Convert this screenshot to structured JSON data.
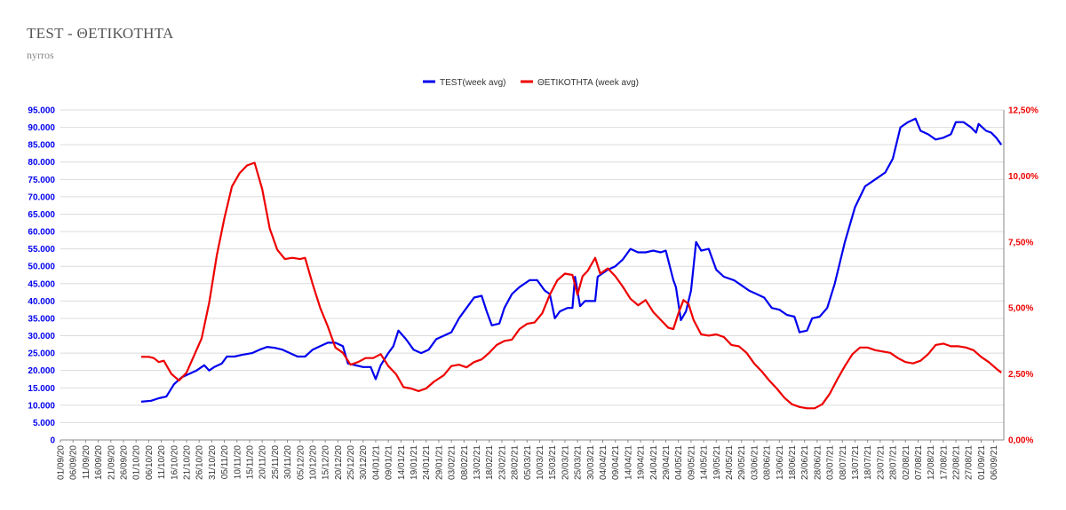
{
  "title": "TEST - ΘΕΤΙΚΟΤΗΤΑ",
  "subtitle": "nyrros",
  "colors": {
    "test": "#0000ee",
    "positivity": "#ee0000",
    "grid": "#dcdcdc"
  },
  "chart_data": {
    "type": "line",
    "legend_position": "top-center",
    "grid": true,
    "legend": [
      "TEST(week avg)",
      "ΘΕΤΙΚΟΤΗΤΑ (week avg)"
    ],
    "x_start": "2020-09-01",
    "x_end": "2021-09-10",
    "x_ticks": [
      "01/09/20",
      "06/09/20",
      "11/09/20",
      "16/09/20",
      "21/09/20",
      "26/09/20",
      "01/10/20",
      "06/10/20",
      "11/10/20",
      "16/10/20",
      "21/10/20",
      "26/10/20",
      "31/10/20",
      "05/11/20",
      "10/11/20",
      "15/11/20",
      "20/11/20",
      "25/11/20",
      "30/11/20",
      "05/12/20",
      "10/12/20",
      "15/12/20",
      "20/12/20",
      "25/12/20",
      "30/12/20",
      "04/01/21",
      "09/01/21",
      "14/01/21",
      "19/01/21",
      "24/01/21",
      "29/01/21",
      "03/02/21",
      "08/02/21",
      "13/02/21",
      "18/02/21",
      "23/02/21",
      "28/02/21",
      "05/03/21",
      "10/03/21",
      "15/03/21",
      "20/03/21",
      "25/03/21",
      "30/03/21",
      "04/04/21",
      "09/04/21",
      "14/04/21",
      "19/04/21",
      "24/04/21",
      "29/04/21",
      "04/05/21",
      "09/05/21",
      "14/05/21",
      "19/05/21",
      "24/05/21",
      "29/05/21",
      "03/06/21",
      "08/06/21",
      "13/06/21",
      "18/06/21",
      "23/06/21",
      "28/06/21",
      "03/07/21",
      "08/07/21",
      "13/07/21",
      "18/07/21",
      "23/07/21",
      "28/07/21",
      "02/08/21",
      "07/08/21",
      "12/08/21",
      "17/08/21",
      "22/08/21",
      "27/08/21",
      "01/09/21",
      "06/09/21"
    ],
    "y_left": {
      "min": 0,
      "max": 95000,
      "step": 5000,
      "tick_labels": [
        "0",
        "5.000",
        "10.000",
        "15.000",
        "20.000",
        "25.000",
        "30.000",
        "35.000",
        "40.000",
        "45.000",
        "50.000",
        "55.000",
        "60.000",
        "65.000",
        "70.000",
        "75.000",
        "80.000",
        "85.000",
        "90.000",
        "95.000"
      ]
    },
    "y_right": {
      "min": 0,
      "max": 12.5,
      "step": 2.5,
      "tick_labels": [
        "0,00%",
        "2,50%",
        "5,00%",
        "7,50%",
        "10,00%",
        "12,50%"
      ]
    },
    "series": [
      {
        "name": "TEST(week avg)",
        "axis": "left",
        "points": [
          [
            "2020-10-03",
            11000
          ],
          [
            "2020-10-07",
            11300
          ],
          [
            "2020-10-10",
            12000
          ],
          [
            "2020-10-13",
            12500
          ],
          [
            "2020-10-16",
            16000
          ],
          [
            "2020-10-19",
            18000
          ],
          [
            "2020-10-22",
            19000
          ],
          [
            "2020-10-25",
            20000
          ],
          [
            "2020-10-28",
            21500
          ],
          [
            "2020-10-30",
            20000
          ],
          [
            "2020-11-01",
            21000
          ],
          [
            "2020-11-04",
            22000
          ],
          [
            "2020-11-06",
            24000
          ],
          [
            "2020-11-09",
            24000
          ],
          [
            "2020-11-12",
            24500
          ],
          [
            "2020-11-16",
            25000
          ],
          [
            "2020-11-19",
            26000
          ],
          [
            "2020-11-22",
            26800
          ],
          [
            "2020-11-25",
            26500
          ],
          [
            "2020-11-28",
            26000
          ],
          [
            "2020-12-01",
            25000
          ],
          [
            "2020-12-04",
            24000
          ],
          [
            "2020-12-07",
            24000
          ],
          [
            "2020-12-10",
            26000
          ],
          [
            "2020-12-13",
            27000
          ],
          [
            "2020-12-16",
            28000
          ],
          [
            "2020-12-19",
            28000
          ],
          [
            "2020-12-22",
            27000
          ],
          [
            "2020-12-24",
            22000
          ],
          [
            "2020-12-27",
            21500
          ],
          [
            "2020-12-30",
            21000
          ],
          [
            "2021-01-02",
            21000
          ],
          [
            "2021-01-04",
            17500
          ],
          [
            "2021-01-06",
            21500
          ],
          [
            "2021-01-09",
            25000
          ],
          [
            "2021-01-11",
            27000
          ],
          [
            "2021-01-13",
            31500
          ],
          [
            "2021-01-16",
            29000
          ],
          [
            "2021-01-19",
            26000
          ],
          [
            "2021-01-22",
            25000
          ],
          [
            "2021-01-25",
            26000
          ],
          [
            "2021-01-28",
            29000
          ],
          [
            "2021-01-31",
            30000
          ],
          [
            "2021-02-03",
            31000
          ],
          [
            "2021-02-06",
            35000
          ],
          [
            "2021-02-09",
            38000
          ],
          [
            "2021-02-12",
            41000
          ],
          [
            "2021-02-15",
            41500
          ],
          [
            "2021-02-17",
            37000
          ],
          [
            "2021-02-19",
            33000
          ],
          [
            "2021-02-22",
            33500
          ],
          [
            "2021-02-24",
            38000
          ],
          [
            "2021-02-27",
            42000
          ],
          [
            "2021-03-02",
            44000
          ],
          [
            "2021-03-06",
            46000
          ],
          [
            "2021-03-09",
            46000
          ],
          [
            "2021-03-12",
            43000
          ],
          [
            "2021-03-14",
            42000
          ],
          [
            "2021-03-16",
            35000
          ],
          [
            "2021-03-18",
            37000
          ],
          [
            "2021-03-21",
            38000
          ],
          [
            "2021-03-23",
            38000
          ],
          [
            "2021-03-24",
            47000
          ],
          [
            "2021-03-26",
            38500
          ],
          [
            "2021-03-28",
            40000
          ],
          [
            "2021-04-01",
            40000
          ],
          [
            "2021-04-02",
            47000
          ],
          [
            "2021-04-06",
            49000
          ],
          [
            "2021-04-09",
            50000
          ],
          [
            "2021-04-12",
            52000
          ],
          [
            "2021-04-15",
            55000
          ],
          [
            "2021-04-18",
            54000
          ],
          [
            "2021-04-21",
            54000
          ],
          [
            "2021-04-24",
            54500
          ],
          [
            "2021-04-27",
            54000
          ],
          [
            "2021-04-29",
            54500
          ],
          [
            "2021-05-02",
            46000
          ],
          [
            "2021-05-03",
            44000
          ],
          [
            "2021-05-05",
            34500
          ],
          [
            "2021-05-07",
            37000
          ],
          [
            "2021-05-09",
            43000
          ],
          [
            "2021-05-11",
            57000
          ],
          [
            "2021-05-13",
            54500
          ],
          [
            "2021-05-16",
            55000
          ],
          [
            "2021-05-19",
            49000
          ],
          [
            "2021-05-22",
            47000
          ],
          [
            "2021-05-26",
            46000
          ],
          [
            "2021-05-29",
            44500
          ],
          [
            "2021-06-01",
            43000
          ],
          [
            "2021-06-04",
            42000
          ],
          [
            "2021-06-07",
            41000
          ],
          [
            "2021-06-10",
            38000
          ],
          [
            "2021-06-13",
            37500
          ],
          [
            "2021-06-16",
            36000
          ],
          [
            "2021-06-19",
            35500
          ],
          [
            "2021-06-21",
            31000
          ],
          [
            "2021-06-24",
            31500
          ],
          [
            "2021-06-26",
            35000
          ],
          [
            "2021-06-29",
            35500
          ],
          [
            "2021-07-02",
            38000
          ],
          [
            "2021-07-05",
            45000
          ],
          [
            "2021-07-09",
            57000
          ],
          [
            "2021-07-13",
            67000
          ],
          [
            "2021-07-17",
            73000
          ],
          [
            "2021-07-21",
            75000
          ],
          [
            "2021-07-25",
            77000
          ],
          [
            "2021-07-28",
            81000
          ],
          [
            "2021-07-31",
            90000
          ],
          [
            "2021-08-03",
            91500
          ],
          [
            "2021-08-06",
            92500
          ],
          [
            "2021-08-08",
            89000
          ],
          [
            "2021-08-11",
            88000
          ],
          [
            "2021-08-14",
            86500
          ],
          [
            "2021-08-17",
            87000
          ],
          [
            "2021-08-20",
            88000
          ],
          [
            "2021-08-22",
            91500
          ],
          [
            "2021-08-25",
            91500
          ],
          [
            "2021-08-28",
            90000
          ],
          [
            "2021-08-30",
            88500
          ],
          [
            "2021-08-31",
            91000
          ],
          [
            "2021-09-03",
            89000
          ],
          [
            "2021-09-05",
            88500
          ],
          [
            "2021-09-07",
            87000
          ],
          [
            "2021-09-09",
            85000
          ]
        ]
      },
      {
        "name": "ΘΕΤΙΚΟΤΗΤΑ (week avg)",
        "axis": "right",
        "points": [
          [
            "2020-10-03",
            3.15
          ],
          [
            "2020-10-06",
            3.15
          ],
          [
            "2020-10-08",
            3.1
          ],
          [
            "2020-10-10",
            2.95
          ],
          [
            "2020-10-12",
            3.0
          ],
          [
            "2020-10-15",
            2.5
          ],
          [
            "2020-10-18",
            2.25
          ],
          [
            "2020-10-21",
            2.55
          ],
          [
            "2020-10-24",
            3.2
          ],
          [
            "2020-10-27",
            3.85
          ],
          [
            "2020-10-30",
            5.2
          ],
          [
            "2020-11-02",
            7.0
          ],
          [
            "2020-11-05",
            8.4
          ],
          [
            "2020-11-08",
            9.6
          ],
          [
            "2020-11-11",
            10.1
          ],
          [
            "2020-11-14",
            10.4
          ],
          [
            "2020-11-17",
            10.5
          ],
          [
            "2020-11-20",
            9.5
          ],
          [
            "2020-11-23",
            8.0
          ],
          [
            "2020-11-26",
            7.2
          ],
          [
            "2020-11-29",
            6.85
          ],
          [
            "2020-12-02",
            6.9
          ],
          [
            "2020-12-05",
            6.85
          ],
          [
            "2020-12-07",
            6.9
          ],
          [
            "2020-12-10",
            5.9
          ],
          [
            "2020-12-13",
            5.0
          ],
          [
            "2020-12-16",
            4.3
          ],
          [
            "2020-12-19",
            3.5
          ],
          [
            "2020-12-22",
            3.3
          ],
          [
            "2020-12-25",
            2.85
          ],
          [
            "2020-12-28",
            2.95
          ],
          [
            "2020-12-31",
            3.1
          ],
          [
            "2021-01-03",
            3.1
          ],
          [
            "2021-01-06",
            3.25
          ],
          [
            "2021-01-09",
            2.8
          ],
          [
            "2021-01-12",
            2.5
          ],
          [
            "2021-01-15",
            2.0
          ],
          [
            "2021-01-18",
            1.95
          ],
          [
            "2021-01-21",
            1.85
          ],
          [
            "2021-01-24",
            1.95
          ],
          [
            "2021-01-27",
            2.2
          ],
          [
            "2021-01-31",
            2.45
          ],
          [
            "2021-02-03",
            2.8
          ],
          [
            "2021-02-06",
            2.85
          ],
          [
            "2021-02-09",
            2.75
          ],
          [
            "2021-02-12",
            2.95
          ],
          [
            "2021-02-15",
            3.05
          ],
          [
            "2021-02-18",
            3.3
          ],
          [
            "2021-02-21",
            3.6
          ],
          [
            "2021-02-24",
            3.75
          ],
          [
            "2021-02-27",
            3.8
          ],
          [
            "2021-03-02",
            4.2
          ],
          [
            "2021-03-05",
            4.4
          ],
          [
            "2021-03-08",
            4.45
          ],
          [
            "2021-03-11",
            4.8
          ],
          [
            "2021-03-14",
            5.5
          ],
          [
            "2021-03-17",
            6.05
          ],
          [
            "2021-03-20",
            6.3
          ],
          [
            "2021-03-23",
            6.25
          ],
          [
            "2021-03-25",
            5.5
          ],
          [
            "2021-03-27",
            6.2
          ],
          [
            "2021-03-29",
            6.4
          ],
          [
            "2021-04-01",
            6.9
          ],
          [
            "2021-04-03",
            6.3
          ],
          [
            "2021-04-06",
            6.5
          ],
          [
            "2021-04-09",
            6.2
          ],
          [
            "2021-04-12",
            5.8
          ],
          [
            "2021-04-15",
            5.35
          ],
          [
            "2021-04-18",
            5.1
          ],
          [
            "2021-04-21",
            5.3
          ],
          [
            "2021-04-24",
            4.85
          ],
          [
            "2021-04-27",
            4.55
          ],
          [
            "2021-04-30",
            4.25
          ],
          [
            "2021-05-02",
            4.2
          ],
          [
            "2021-05-04",
            4.8
          ],
          [
            "2021-05-06",
            5.3
          ],
          [
            "2021-05-08",
            5.15
          ],
          [
            "2021-05-10",
            4.55
          ],
          [
            "2021-05-13",
            4.0
          ],
          [
            "2021-05-16",
            3.95
          ],
          [
            "2021-05-19",
            4.0
          ],
          [
            "2021-05-22",
            3.9
          ],
          [
            "2021-05-25",
            3.6
          ],
          [
            "2021-05-28",
            3.55
          ],
          [
            "2021-05-31",
            3.3
          ],
          [
            "2021-06-03",
            2.9
          ],
          [
            "2021-06-06",
            2.6
          ],
          [
            "2021-06-09",
            2.25
          ],
          [
            "2021-06-12",
            1.95
          ],
          [
            "2021-06-15",
            1.6
          ],
          [
            "2021-06-18",
            1.35
          ],
          [
            "2021-06-21",
            1.25
          ],
          [
            "2021-06-24",
            1.2
          ],
          [
            "2021-06-27",
            1.2
          ],
          [
            "2021-06-30",
            1.35
          ],
          [
            "2021-07-03",
            1.75
          ],
          [
            "2021-07-06",
            2.3
          ],
          [
            "2021-07-09",
            2.8
          ],
          [
            "2021-07-12",
            3.25
          ],
          [
            "2021-07-15",
            3.5
          ],
          [
            "2021-07-18",
            3.5
          ],
          [
            "2021-07-21",
            3.4
          ],
          [
            "2021-07-24",
            3.35
          ],
          [
            "2021-07-27",
            3.3
          ],
          [
            "2021-07-30",
            3.1
          ],
          [
            "2021-08-02",
            2.95
          ],
          [
            "2021-08-05",
            2.9
          ],
          [
            "2021-08-08",
            3.0
          ],
          [
            "2021-08-11",
            3.25
          ],
          [
            "2021-08-14",
            3.6
          ],
          [
            "2021-08-17",
            3.65
          ],
          [
            "2021-08-20",
            3.55
          ],
          [
            "2021-08-23",
            3.55
          ],
          [
            "2021-08-26",
            3.5
          ],
          [
            "2021-08-29",
            3.4
          ],
          [
            "2021-09-01",
            3.15
          ],
          [
            "2021-09-04",
            2.95
          ],
          [
            "2021-09-07",
            2.7
          ],
          [
            "2021-09-09",
            2.55
          ]
        ]
      }
    ]
  }
}
